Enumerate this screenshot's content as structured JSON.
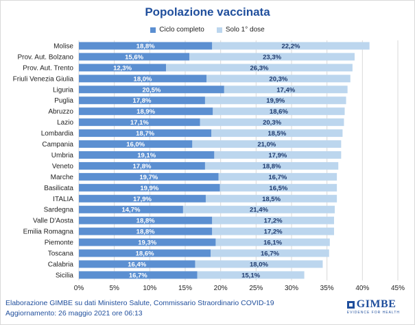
{
  "chart_data": {
    "type": "bar",
    "orientation": "horizontal",
    "stacked": true,
    "title": "Popolazione vaccinata",
    "categories": [
      "Molise",
      "Prov. Aut. Bolzano",
      "Prov. Aut. Trento",
      "Friuli Venezia Giulia",
      "Liguria",
      "Puglia",
      "Abruzzo",
      "Lazio",
      "Lombardia",
      "Campania",
      "Umbria",
      "Veneto",
      "Marche",
      "Basilicata",
      "ITALIA",
      "Sardegna",
      "Valle D'Aosta",
      "Emilia Romagna",
      "Piemonte",
      "Toscana",
      "Calabria",
      "Sicilia"
    ],
    "series": [
      {
        "name": "Ciclo completo",
        "color": "#5b8fd1",
        "values": [
          18.8,
          15.6,
          12.3,
          18.0,
          20.5,
          17.8,
          18.9,
          17.1,
          18.7,
          16.0,
          19.1,
          17.8,
          19.7,
          19.9,
          17.9,
          14.7,
          18.8,
          18.8,
          19.3,
          18.6,
          16.4,
          16.7
        ],
        "labels": [
          "18,8%",
          "15,6%",
          "12,3%",
          "18,0%",
          "20,5%",
          "17,8%",
          "18,9%",
          "17,1%",
          "18,7%",
          "16,0%",
          "19,1%",
          "17,8%",
          "19,7%",
          "19,9%",
          "17,9%",
          "14,7%",
          "18,8%",
          "18,8%",
          "19,3%",
          "18,6%",
          "16,4%",
          "16,7%"
        ]
      },
      {
        "name": "Solo 1° dose",
        "color": "#bcd6ee",
        "values": [
          22.2,
          23.3,
          26.3,
          20.3,
          17.4,
          19.9,
          18.6,
          20.3,
          18.5,
          21.0,
          17.9,
          18.8,
          16.7,
          16.5,
          18.5,
          21.4,
          17.2,
          17.2,
          16.1,
          16.7,
          18.0,
          15.1
        ],
        "labels": [
          "22,2%",
          "23,3%",
          "26,3%",
          "20,3%",
          "17,4%",
          "19,9%",
          "18,6%",
          "20,3%",
          "18,5%",
          "21,0%",
          "17,9%",
          "18,8%",
          "16,7%",
          "16,5%",
          "18,5%",
          "21,4%",
          "17,2%",
          "17,2%",
          "16,1%",
          "16,7%",
          "18,0%",
          "15,1%"
        ]
      }
    ],
    "xlim": [
      0,
      45
    ],
    "xticks": [
      0,
      5,
      10,
      15,
      20,
      25,
      30,
      35,
      40,
      45
    ],
    "xtick_labels": [
      "0%",
      "5%",
      "10%",
      "15%",
      "20%",
      "25%",
      "30%",
      "35%",
      "40%",
      "45%"
    ],
    "grid": true,
    "legend_position": "top"
  },
  "footer": {
    "source": "Elaborazione GIMBE su dati Ministero Salute, Commissario Straordinario COVID-19",
    "updated": "Aggiornamento: 26 maggio 2021 ore 06:13"
  },
  "logo": {
    "name": "GIMBE",
    "tagline": "EVIDENCE FOR HEALTH"
  }
}
